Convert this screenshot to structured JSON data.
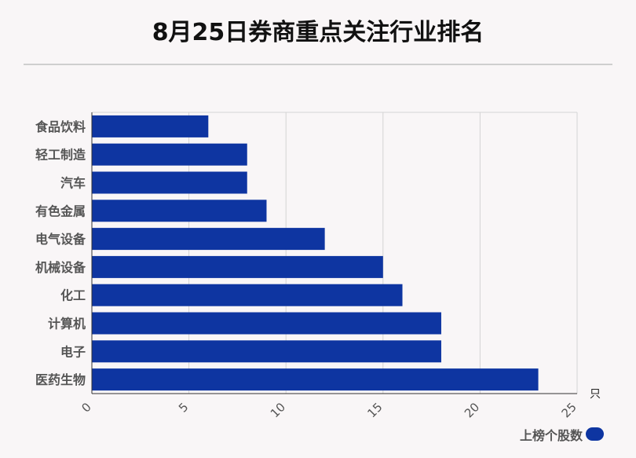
{
  "chart_data": {
    "type": "bar",
    "orientation": "horizontal",
    "title": "8月25日券商重点关注行业排名",
    "categories": [
      "食品饮料",
      "轻工制造",
      "汽车",
      "有色金属",
      "电气设备",
      "机械设备",
      "化工",
      "计算机",
      "电子",
      "医药生物"
    ],
    "series": [
      {
        "name": "上榜个股数",
        "values": [
          6,
          8,
          8,
          9,
          12,
          15,
          16,
          18,
          18,
          23
        ]
      }
    ],
    "xlim": [
      0,
      25
    ],
    "xticks": [
      "0",
      "5",
      "10",
      "15",
      "20",
      "25"
    ],
    "xunit": "只",
    "grid": true,
    "legend_position": "bottom-right",
    "bar_color": "#0e35a1"
  }
}
